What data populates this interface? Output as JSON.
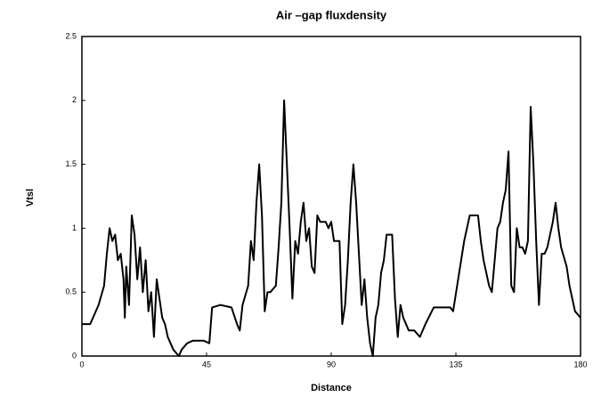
{
  "chart_data": {
    "type": "line",
    "title": "Air –gap fluxdensity",
    "xlabel": "Distance",
    "ylabel": "Vtsl",
    "x": [
      0,
      3,
      6,
      8,
      9,
      10,
      11,
      12,
      13,
      14,
      15,
      15.5,
      16,
      17,
      18,
      19,
      20,
      21,
      22,
      23,
      24,
      25,
      26,
      27,
      28,
      29,
      30,
      31,
      33,
      35,
      36,
      38,
      40,
      44,
      46,
      47,
      50,
      54,
      56,
      57,
      58,
      60,
      61,
      62,
      63,
      64,
      65,
      66,
      67,
      68,
      70,
      71,
      72,
      73,
      74,
      75,
      76,
      77,
      78,
      79,
      80,
      81,
      82,
      83,
      84,
      85,
      86,
      88,
      89,
      90,
      91,
      93,
      94,
      95,
      96,
      97,
      98,
      99,
      100,
      101,
      102,
      103,
      104,
      105,
      106,
      107,
      108,
      109,
      110,
      112,
      113,
      114,
      115,
      116,
      118,
      120,
      122,
      124,
      127,
      133,
      134,
      138,
      140,
      143,
      144,
      145,
      147,
      148,
      149,
      150,
      151,
      152,
      153,
      154,
      155,
      156,
      157,
      158,
      159,
      160,
      161,
      162,
      163,
      164,
      165,
      166,
      167,
      168,
      169,
      170,
      171,
      172,
      173,
      175,
      176,
      178,
      180
    ],
    "series": [
      {
        "name": "Air-gap fluxdensity",
        "color": "#000000",
        "values": [
          0.25,
          0.25,
          0.4,
          0.55,
          0.8,
          1.0,
          0.9,
          0.95,
          0.75,
          0.8,
          0.6,
          0.3,
          0.7,
          0.4,
          1.1,
          0.95,
          0.6,
          0.85,
          0.5,
          0.75,
          0.35,
          0.5,
          0.15,
          0.6,
          0.45,
          0.3,
          0.25,
          0.15,
          0.05,
          0.0,
          0.05,
          0.1,
          0.12,
          0.12,
          0.1,
          0.38,
          0.4,
          0.38,
          0.25,
          0.2,
          0.4,
          0.55,
          0.9,
          0.75,
          1.2,
          1.5,
          1.1,
          0.35,
          0.5,
          0.5,
          0.55,
          0.85,
          1.2,
          2.0,
          1.5,
          1.0,
          0.45,
          0.9,
          0.8,
          1.05,
          1.2,
          0.9,
          1.0,
          0.7,
          0.65,
          1.1,
          1.05,
          1.05,
          1.0,
          1.05,
          0.9,
          0.9,
          0.25,
          0.4,
          0.75,
          1.2,
          1.5,
          1.2,
          0.8,
          0.4,
          0.6,
          0.3,
          0.1,
          0.0,
          0.3,
          0.4,
          0.65,
          0.75,
          0.95,
          0.95,
          0.45,
          0.15,
          0.4,
          0.3,
          0.2,
          0.2,
          0.15,
          0.25,
          0.38,
          0.38,
          0.35,
          0.9,
          1.1,
          1.1,
          0.9,
          0.75,
          0.55,
          0.5,
          0.75,
          1.0,
          1.05,
          1.2,
          1.3,
          1.6,
          0.55,
          0.5,
          1.0,
          0.85,
          0.85,
          0.8,
          0.9,
          1.95,
          1.5,
          0.9,
          0.4,
          0.8,
          0.8,
          0.85,
          0.95,
          1.05,
          1.2,
          1.0,
          0.85,
          0.7,
          0.55,
          0.35,
          0.3
        ]
      }
    ],
    "xlim": [
      0,
      180
    ],
    "ylim": [
      0,
      2.5
    ],
    "xticks": [
      0,
      45,
      90,
      135,
      180
    ],
    "yticks": [
      0,
      0.5,
      1,
      1.5,
      2,
      2.5
    ]
  }
}
